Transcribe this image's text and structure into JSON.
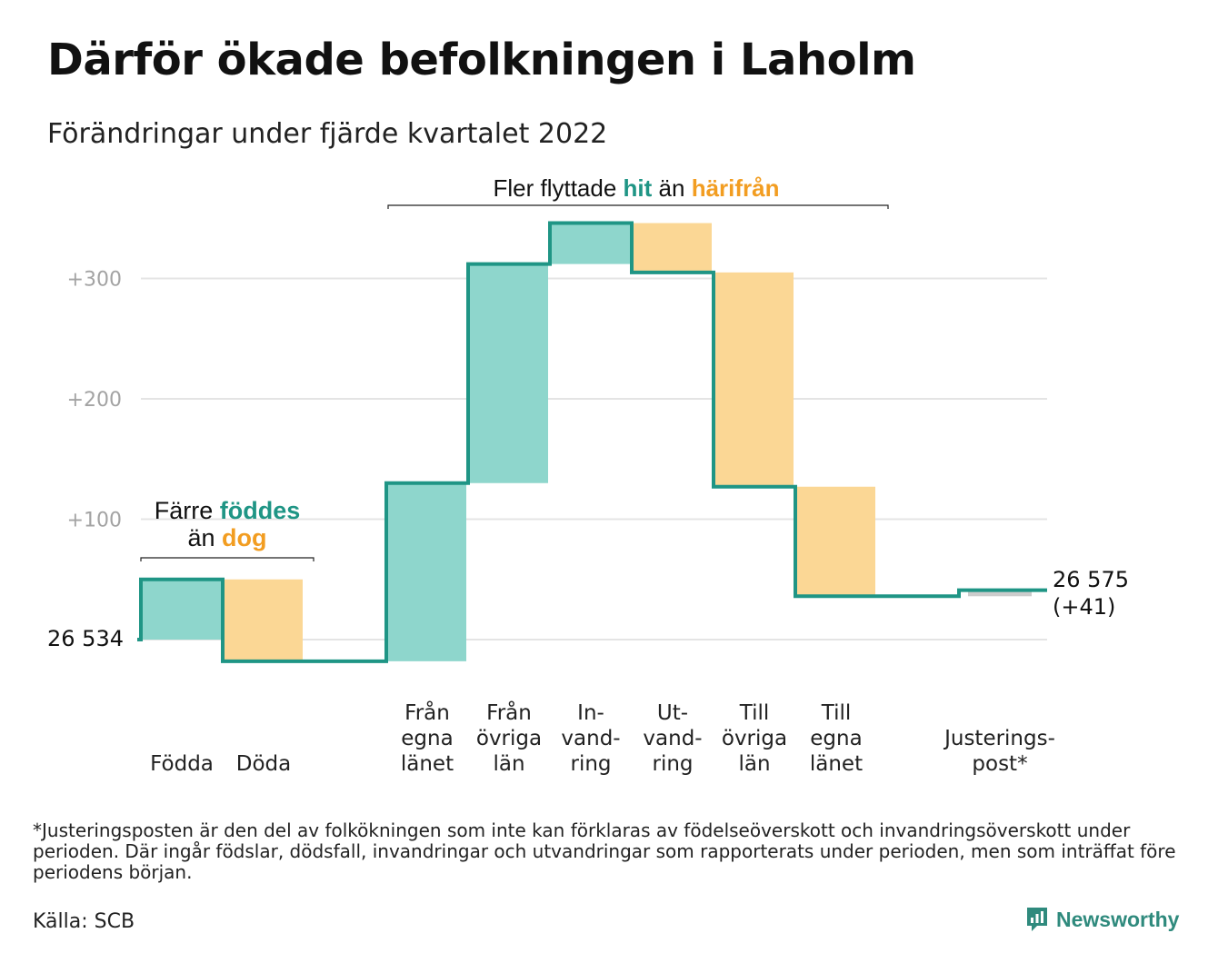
{
  "title": "Därför ökade befolkningen i Laholm",
  "subtitle": "Förändringar under fjärde kvartalet 2022",
  "footnote": "*Justeringsposten är den del av folkökningen som inte kan förklaras av födelseöverskott och invandringsöverskott under perioden. Där ingår födslar, dödsfall, invandringar och utvandringar som rapporterats under perioden, men som inträffat före periodens början.",
  "source": "Källa: SCB",
  "brand": "Newsworthy",
  "colors": {
    "increase": "#8ed6cc",
    "decrease": "#fbd795",
    "adjustment": "#cccccc",
    "line": "#1f9585",
    "grid": "#e4e4e4",
    "tick": "#a3a3a3",
    "teal_text": "#1f9585",
    "orange_text": "#f29d21"
  },
  "chart_data": {
    "type": "waterfall",
    "start_value": 26534,
    "start_label": "26 534",
    "end_label_line1": "26 575",
    "end_label_line2": "(+41)",
    "total_change": 41,
    "y_ticks": [
      100,
      200,
      300
    ],
    "y_tick_labels": [
      "+100",
      "+200",
      "+300"
    ],
    "grid": true,
    "steps": [
      {
        "id": "fodda",
        "label_lines": [
          "Födda"
        ],
        "value": 50,
        "kind": "increase"
      },
      {
        "id": "doda",
        "label_lines": [
          "Döda"
        ],
        "value": -68,
        "kind": "decrease"
      },
      {
        "id": "gap",
        "label_lines": [],
        "value": 0,
        "kind": "gap"
      },
      {
        "id": "fran-egna-lanet",
        "label_lines": [
          "Från",
          "egna",
          "länet"
        ],
        "value": 148,
        "kind": "increase"
      },
      {
        "id": "fran-ovriga-lan",
        "label_lines": [
          "Från",
          "övriga",
          "län"
        ],
        "value": 182,
        "kind": "increase"
      },
      {
        "id": "invandring",
        "label_lines": [
          "In-",
          "vand-",
          "ring"
        ],
        "value": 34,
        "kind": "increase"
      },
      {
        "id": "utvandring",
        "label_lines": [
          "Ut-",
          "vand-",
          "ring"
        ],
        "value": -41,
        "kind": "decrease"
      },
      {
        "id": "till-ovriga-lan",
        "label_lines": [
          "Till",
          "övriga",
          "län"
        ],
        "value": -178,
        "kind": "decrease"
      },
      {
        "id": "till-egna-lanet",
        "label_lines": [
          "Till",
          "egna",
          "länet"
        ],
        "value": -91,
        "kind": "decrease"
      },
      {
        "id": "gap2",
        "label_lines": [],
        "value": 0,
        "kind": "gap"
      },
      {
        "id": "justeringspost",
        "label_lines": [
          "Justerings-",
          "post*"
        ],
        "value": 5,
        "kind": "adjustment"
      }
    ],
    "annotations": {
      "births": {
        "parts": [
          {
            "text": "Färre ",
            "color": "dark"
          },
          {
            "text": "föddes",
            "color": "teal",
            "bold": true
          },
          {
            "break": true
          },
          {
            "text": "än ",
            "color": "dark"
          },
          {
            "text": "dog",
            "color": "orange",
            "bold": true
          }
        ]
      },
      "migration": {
        "parts": [
          {
            "text": "Fler flyttade ",
            "color": "dark"
          },
          {
            "text": "hit",
            "color": "teal",
            "bold": true
          },
          {
            "text": " än ",
            "color": "dark"
          },
          {
            "text": "härifrån",
            "color": "orange",
            "bold": true
          }
        ]
      }
    }
  }
}
